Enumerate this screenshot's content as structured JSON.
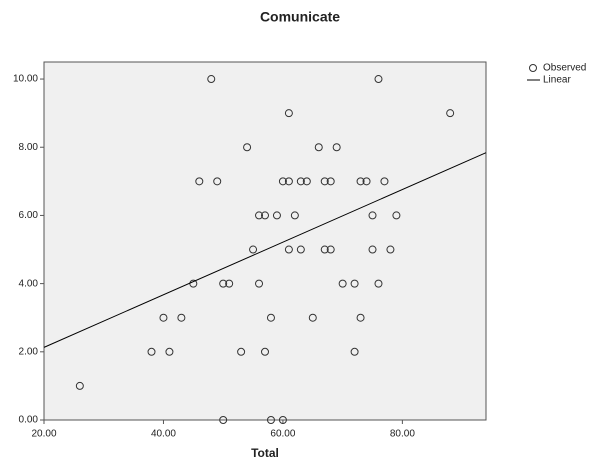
{
  "chart_data": {
    "type": "scatter",
    "title": "Comunicate",
    "x_label": "Total",
    "xlim": [
      20,
      94
    ],
    "ylim": [
      0,
      10.5
    ],
    "xticks": [
      {
        "value": 20,
        "label": "20.00"
      },
      {
        "value": 40,
        "label": "40.00"
      },
      {
        "value": 60,
        "label": "60.00"
      },
      {
        "value": 80,
        "label": "80.00"
      }
    ],
    "yticks": [
      {
        "value": 0,
        "label": "0.00"
      },
      {
        "value": 2,
        "label": "2.00"
      },
      {
        "value": 4,
        "label": "4.00"
      },
      {
        "value": 6,
        "label": "6.00"
      },
      {
        "value": 8,
        "label": "8.00"
      },
      {
        "value": 10,
        "label": "10.00"
      }
    ],
    "series": [
      {
        "name": "Observed",
        "color": "#333333",
        "x": [
          26,
          48,
          76,
          88,
          61,
          54,
          66,
          69,
          46,
          49,
          60,
          61,
          63,
          64,
          67,
          68,
          73,
          74,
          77,
          56,
          57,
          59,
          62,
          75,
          79,
          55,
          61,
          63,
          67,
          68,
          75,
          78,
          45,
          50,
          51,
          56,
          70,
          72,
          76,
          40,
          43,
          58,
          65,
          73,
          38,
          41,
          53,
          57,
          72,
          50,
          58,
          60
        ],
        "values": [
          1,
          10,
          10,
          9,
          9,
          8,
          8,
          8,
          7,
          7,
          7,
          7,
          7,
          7,
          7,
          7,
          7,
          7,
          7,
          6,
          6,
          6,
          6,
          6,
          6,
          5,
          5,
          5,
          5,
          5,
          5,
          5,
          4,
          4,
          4,
          4,
          4,
          4,
          4,
          3,
          3,
          3,
          3,
          3,
          2,
          2,
          2,
          2,
          2,
          0,
          0,
          0
        ]
      },
      {
        "name": "Linear",
        "color": "#000000",
        "x": [
          20,
          94
        ],
        "values": [
          2.13,
          7.84
        ]
      }
    ]
  }
}
